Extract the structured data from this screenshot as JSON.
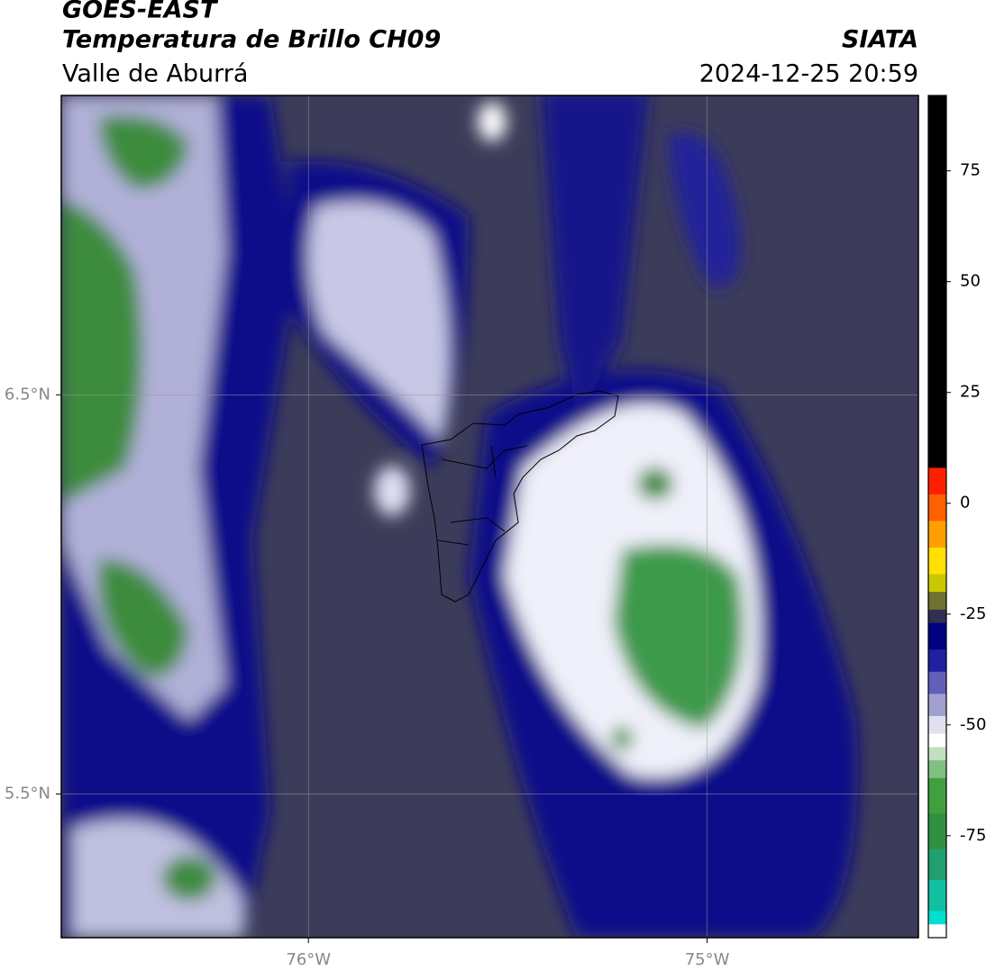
{
  "header": {
    "title": "GOES-EAST",
    "product": "Temperatura de Brillo CH09",
    "region": "Valle de Aburrá",
    "source": "SIATA",
    "datetime": "2024-12-25 20:59"
  },
  "map": {
    "xlim": [
      -76.62,
      -74.47
    ],
    "ylim": [
      5.14,
      7.25
    ],
    "xticks": [
      {
        "value": -76,
        "label": "76°W"
      },
      {
        "value": -75,
        "label": "75°W"
      }
    ],
    "yticks": [
      {
        "value": 5.5,
        "label": "5.5°N"
      },
      {
        "value": 6.5,
        "label": "6.5°N"
      }
    ],
    "grid": true
  },
  "colorbar": {
    "lim": [
      -98,
      92
    ],
    "ticks": [
      75,
      50,
      25,
      0,
      -25,
      -50,
      -75
    ],
    "stops": [
      {
        "value": 92,
        "color": "#000000"
      },
      {
        "value": 8,
        "color": "#ff2000"
      },
      {
        "value": 2,
        "color": "#ff6000"
      },
      {
        "value": -4,
        "color": "#ffa000"
      },
      {
        "value": -10,
        "color": "#ffe000"
      },
      {
        "value": -16,
        "color": "#c8c800"
      },
      {
        "value": -20,
        "color": "#707030"
      },
      {
        "value": -24,
        "color": "#303050"
      },
      {
        "value": -27,
        "color": "#000080"
      },
      {
        "value": -33,
        "color": "#2020a0"
      },
      {
        "value": -38,
        "color": "#6060b8"
      },
      {
        "value": -43,
        "color": "#a0a0d0"
      },
      {
        "value": -48,
        "color": "#e0e0f0"
      },
      {
        "value": -52,
        "color": "#ffffff"
      },
      {
        "value": -55,
        "color": "#c0e0c0"
      },
      {
        "value": -58,
        "color": "#80c080"
      },
      {
        "value": -62,
        "color": "#40a040"
      },
      {
        "value": -70,
        "color": "#309040"
      },
      {
        "value": -78,
        "color": "#20a070"
      },
      {
        "value": -85,
        "color": "#10c0a0"
      },
      {
        "value": -92,
        "color": "#00e0d0"
      },
      {
        "value": -95,
        "color": "#ffffff"
      }
    ]
  }
}
